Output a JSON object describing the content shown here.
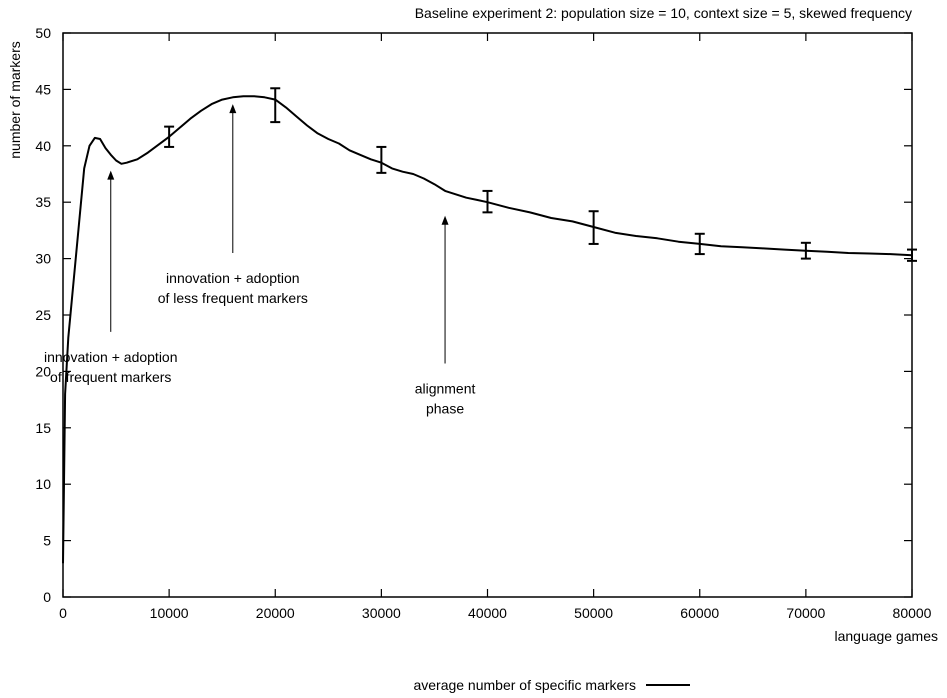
{
  "chart_data": {
    "type": "line",
    "title": "Baseline experiment 2: population size = 10, context size = 5, skewed frequency",
    "xlabel": "language games",
    "ylabel": "number of markers",
    "xlim": [
      0,
      80000
    ],
    "ylim": [
      0,
      50
    ],
    "xticks": [
      0,
      10000,
      20000,
      30000,
      40000,
      50000,
      60000,
      70000,
      80000
    ],
    "yticks": [
      0,
      5,
      10,
      15,
      20,
      25,
      30,
      35,
      40,
      45,
      50
    ],
    "grid": false,
    "legend_position": "bottom-center",
    "series": [
      {
        "name": "average number of specific markers",
        "color": "#000000",
        "x": [
          0,
          200,
          500,
          1000,
          1500,
          2000,
          2500,
          3000,
          3500,
          4000,
          4500,
          5000,
          5500,
          6000,
          7000,
          8000,
          9000,
          10000,
          11000,
          12000,
          13000,
          14000,
          15000,
          16000,
          17000,
          18000,
          19000,
          20000,
          21000,
          22000,
          23000,
          24000,
          25000,
          26000,
          27000,
          28000,
          29000,
          30000,
          31000,
          32000,
          33000,
          34000,
          35000,
          36000,
          37000,
          38000,
          39000,
          40000,
          42000,
          44000,
          46000,
          48000,
          50000,
          52000,
          54000,
          56000,
          58000,
          60000,
          62000,
          64000,
          66000,
          68000,
          70000,
          72000,
          74000,
          76000,
          78000,
          80000
        ],
        "y": [
          3,
          18,
          23,
          28,
          33,
          38,
          40,
          40.7,
          40.6,
          39.8,
          39.2,
          38.7,
          38.4,
          38.5,
          38.8,
          39.4,
          40.1,
          40.8,
          41.6,
          42.4,
          43.1,
          43.7,
          44.1,
          44.3,
          44.4,
          44.4,
          44.3,
          44.1,
          43.4,
          42.6,
          41.8,
          41.1,
          40.6,
          40.2,
          39.6,
          39.2,
          38.8,
          38.5,
          38.0,
          37.7,
          37.5,
          37.1,
          36.6,
          36.0,
          35.7,
          35.4,
          35.2,
          35.0,
          34.5,
          34.1,
          33.6,
          33.3,
          32.8,
          32.3,
          32.0,
          31.8,
          31.5,
          31.3,
          31.1,
          31.0,
          30.9,
          30.8,
          30.7,
          30.6,
          30.5,
          30.45,
          30.4,
          30.3
        ]
      }
    ],
    "error_bars": [
      {
        "x": 10000,
        "low": 39.9,
        "high": 41.7
      },
      {
        "x": 20000,
        "low": 42.1,
        "high": 45.1
      },
      {
        "x": 30000,
        "low": 37.6,
        "high": 39.9
      },
      {
        "x": 40000,
        "low": 34.1,
        "high": 36.0
      },
      {
        "x": 50000,
        "low": 31.3,
        "high": 34.2
      },
      {
        "x": 60000,
        "low": 30.4,
        "high": 32.2
      },
      {
        "x": 70000,
        "low": 30.0,
        "high": 31.4
      },
      {
        "x": 80000,
        "low": 29.8,
        "high": 30.8
      }
    ],
    "annotations": [
      {
        "id": "frequent",
        "lines": [
          "innovation + adoption",
          "of frequent markers"
        ],
        "arrow_x": 4500,
        "arrow_from_y": 23.5,
        "arrow_to_y": 37.8
      },
      {
        "id": "less-frequent",
        "lines": [
          "innovation + adoption",
          "of less frequent markers"
        ],
        "arrow_x": 16000,
        "arrow_from_y": 30.5,
        "arrow_to_y": 43.7
      },
      {
        "id": "alignment",
        "lines": [
          "alignment",
          "phase"
        ],
        "arrow_x": 36000,
        "arrow_from_y": 20.7,
        "arrow_to_y": 33.8
      }
    ]
  }
}
